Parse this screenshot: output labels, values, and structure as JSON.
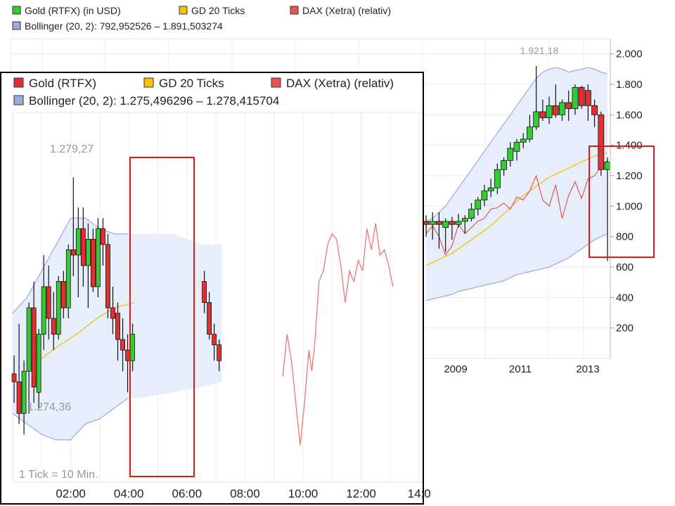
{
  "chart_data": [
    {
      "id": "background",
      "type": "candlestick",
      "legend": {
        "placement": "top-left",
        "entries": [
          {
            "name": "Gold (RTFX) (in USD)",
            "color": "#33cc33"
          },
          {
            "name": "GD 20 Ticks",
            "color": "#f5c400"
          },
          {
            "name": "DAX (Xetra) (relativ)",
            "color": "#e85454"
          }
        ],
        "bollinger": {
          "name": "Bollinger (20, 2): 792,952526 – 1.891,503274",
          "color": "#99aadd"
        }
      },
      "x_ticks": [
        "2009",
        "2011",
        "2013"
      ],
      "y_ticks": [
        "2.000",
        "1.800",
        "1.600",
        "1.400",
        "1.200",
        "1.000",
        "800",
        "600",
        "400",
        "200"
      ],
      "ylim": [
        0,
        2100
      ],
      "max_annotation": "1.921,18",
      "highlight": "red-box",
      "candles": [
        {
          "o": 900,
          "h": 940,
          "l": 800,
          "c": 880
        },
        {
          "o": 880,
          "h": 960,
          "l": 780,
          "c": 900
        },
        {
          "o": 900,
          "h": 960,
          "l": 720,
          "c": 880
        },
        {
          "o": 860,
          "h": 920,
          "l": 700,
          "c": 900
        },
        {
          "o": 900,
          "h": 930,
          "l": 780,
          "c": 880
        },
        {
          "o": 880,
          "h": 950,
          "l": 860,
          "c": 900
        },
        {
          "o": 900,
          "h": 940,
          "l": 820,
          "c": 920
        },
        {
          "o": 920,
          "h": 1020,
          "l": 900,
          "c": 980
        },
        {
          "o": 980,
          "h": 1060,
          "l": 940,
          "c": 1040
        },
        {
          "o": 1040,
          "h": 1140,
          "l": 1000,
          "c": 1100
        },
        {
          "o": 1100,
          "h": 1180,
          "l": 1060,
          "c": 1120
        },
        {
          "o": 1120,
          "h": 1280,
          "l": 1080,
          "c": 1240
        },
        {
          "o": 1240,
          "h": 1320,
          "l": 1200,
          "c": 1300
        },
        {
          "o": 1300,
          "h": 1420,
          "l": 1260,
          "c": 1380
        },
        {
          "o": 1360,
          "h": 1440,
          "l": 1300,
          "c": 1420
        },
        {
          "o": 1420,
          "h": 1480,
          "l": 1380,
          "c": 1440
        },
        {
          "o": 1440,
          "h": 1600,
          "l": 1420,
          "c": 1520
        },
        {
          "o": 1520,
          "h": 1920,
          "l": 1500,
          "c": 1620
        },
        {
          "o": 1620,
          "h": 1700,
          "l": 1560,
          "c": 1580
        },
        {
          "o": 1580,
          "h": 1720,
          "l": 1540,
          "c": 1660
        },
        {
          "o": 1660,
          "h": 1800,
          "l": 1580,
          "c": 1600
        },
        {
          "o": 1600,
          "h": 1700,
          "l": 1560,
          "c": 1680
        },
        {
          "o": 1680,
          "h": 1760,
          "l": 1560,
          "c": 1640
        },
        {
          "o": 1640,
          "h": 1800,
          "l": 1600,
          "c": 1780
        },
        {
          "o": 1780,
          "h": 1790,
          "l": 1640,
          "c": 1660
        },
        {
          "o": 1760,
          "h": 1800,
          "l": 1560,
          "c": 1660
        },
        {
          "o": 1660,
          "h": 1700,
          "l": 1520,
          "c": 1600
        },
        {
          "o": 1600,
          "h": 1620,
          "l": 1200,
          "c": 1240
        },
        {
          "o": 1240,
          "h": 1320,
          "l": 640,
          "c": 1290
        }
      ],
      "ma20": [
        610,
        630,
        650,
        670,
        690,
        720,
        750,
        780,
        810,
        840,
        870,
        910,
        950,
        990,
        1030,
        1070,
        1100,
        1130,
        1160,
        1190,
        1210,
        1230,
        1250,
        1270,
        1290,
        1310,
        1330,
        1340,
        1350
      ],
      "dax": [
        820,
        870,
        800,
        680,
        740,
        880,
        820,
        860,
        900,
        920,
        980,
        990,
        1020,
        980,
        1060,
        1040,
        1100,
        1200,
        1040,
        1000,
        1140,
        920,
        1070,
        1160,
        1050,
        1180,
        1200,
        1260,
        1300
      ],
      "bb_upper": [
        900,
        920,
        960,
        1000,
        1060,
        1120,
        1180,
        1240,
        1300,
        1360,
        1420,
        1480,
        1540,
        1600,
        1660,
        1720,
        1780,
        1840,
        1880,
        1900,
        1910,
        1900,
        1880,
        1890,
        1900,
        1910,
        1900,
        1880,
        1870
      ],
      "bb_lower": [
        380,
        390,
        400,
        410,
        420,
        440,
        450,
        460,
        470,
        480,
        490,
        500,
        510,
        530,
        550,
        560,
        570,
        580,
        590,
        600,
        620,
        640,
        660,
        690,
        720,
        750,
        780,
        800,
        820
      ]
    },
    {
      "id": "inset",
      "type": "candlestick",
      "legend": {
        "placement": "top-left",
        "entries": [
          {
            "name": "Gold (RTFX)",
            "color": "#e03030"
          },
          {
            "name": "GD 20 Ticks",
            "color": "#f5c400"
          },
          {
            "name": "DAX (Xetra) (relativ)",
            "color": "#e85454"
          }
        ],
        "bollinger": {
          "name": "Bollinger (20, 2): 1.275,496296 – 1.278,415704",
          "color": "#99aadd"
        }
      },
      "x_ticks": [
        "02:00",
        "04:00",
        "06:00",
        "08:00",
        "10:00",
        "12:00",
        "14:0"
      ],
      "xlim": [
        0,
        14
      ],
      "ylim": [
        1273.5,
        1280.5
      ],
      "max_annotation": "1.279,27",
      "min_annotation": "1.274,36",
      "footnote": "1 Tick = 10 Min.",
      "highlight": "red-box",
      "candles": [
        {
          "t": 0.05,
          "o": 1275.55,
          "h": 1275.9,
          "l": 1275.0,
          "c": 1275.4
        },
        {
          "t": 0.22,
          "o": 1275.4,
          "h": 1276.5,
          "l": 1274.6,
          "c": 1274.8
        },
        {
          "t": 0.39,
          "o": 1274.8,
          "h": 1275.8,
          "l": 1274.4,
          "c": 1275.6
        },
        {
          "t": 0.56,
          "o": 1275.6,
          "h": 1276.9,
          "l": 1274.8,
          "c": 1276.8
        },
        {
          "t": 0.73,
          "o": 1276.8,
          "h": 1277.3,
          "l": 1275.0,
          "c": 1275.3
        },
        {
          "t": 0.9,
          "o": 1275.2,
          "h": 1276.4,
          "l": 1274.9,
          "c": 1276.3
        },
        {
          "t": 1.07,
          "o": 1276.3,
          "h": 1277.8,
          "l": 1276.0,
          "c": 1277.2
        },
        {
          "t": 1.24,
          "o": 1277.2,
          "h": 1277.6,
          "l": 1276.2,
          "c": 1276.6
        },
        {
          "t": 1.41,
          "o": 1276.6,
          "h": 1277.1,
          "l": 1276.0,
          "c": 1276.3
        },
        {
          "t": 1.58,
          "o": 1276.3,
          "h": 1277.4,
          "l": 1276.2,
          "c": 1277.3
        },
        {
          "t": 1.75,
          "o": 1277.3,
          "h": 1277.5,
          "l": 1276.6,
          "c": 1276.8
        },
        {
          "t": 1.92,
          "o": 1276.8,
          "h": 1278.0,
          "l": 1276.6,
          "c": 1277.9
        },
        {
          "t": 2.09,
          "o": 1277.9,
          "h": 1279.27,
          "l": 1277.4,
          "c": 1277.8
        },
        {
          "t": 2.26,
          "o": 1277.8,
          "h": 1278.7,
          "l": 1277.0,
          "c": 1278.3
        },
        {
          "t": 2.43,
          "o": 1278.3,
          "h": 1278.7,
          "l": 1277.2,
          "c": 1277.6
        },
        {
          "t": 2.6,
          "o": 1277.6,
          "h": 1278.4,
          "l": 1276.8,
          "c": 1278.1
        },
        {
          "t": 2.77,
          "o": 1278.1,
          "h": 1278.3,
          "l": 1277.1,
          "c": 1277.2
        },
        {
          "t": 2.94,
          "o": 1277.2,
          "h": 1278.5,
          "l": 1277.0,
          "c": 1278.3
        },
        {
          "t": 3.11,
          "o": 1278.3,
          "h": 1278.5,
          "l": 1277.6,
          "c": 1278.0
        },
        {
          "t": 3.28,
          "o": 1278.0,
          "h": 1278.2,
          "l": 1276.6,
          "c": 1276.8
        },
        {
          "t": 3.45,
          "o": 1276.8,
          "h": 1277.2,
          "l": 1276.3,
          "c": 1276.6
        },
        {
          "t": 3.62,
          "o": 1276.7,
          "h": 1276.9,
          "l": 1275.8,
          "c": 1276.2
        },
        {
          "t": 3.79,
          "o": 1276.2,
          "h": 1276.6,
          "l": 1275.6,
          "c": 1276.0
        },
        {
          "t": 3.96,
          "o": 1276.0,
          "h": 1276.3,
          "l": 1275.2,
          "c": 1275.8
        },
        {
          "t": 4.13,
          "o": 1275.8,
          "h": 1276.5,
          "l": 1275.6,
          "c": 1276.3
        },
        {
          "t": 6.6,
          "o": 1277.3,
          "h": 1277.5,
          "l": 1276.7,
          "c": 1276.9
        },
        {
          "t": 6.77,
          "o": 1276.9,
          "h": 1277.1,
          "l": 1276.2,
          "c": 1276.3
        },
        {
          "t": 6.94,
          "o": 1276.3,
          "h": 1276.5,
          "l": 1275.8,
          "c": 1276.1
        },
        {
          "t": 7.11,
          "o": 1276.1,
          "h": 1276.2,
          "l": 1275.6,
          "c": 1275.8
        }
      ],
      "ma20": [
        {
          "t": 0.9,
          "v": 1275.8
        },
        {
          "t": 1.5,
          "v": 1276.05
        },
        {
          "t": 2.2,
          "v": 1276.3
        },
        {
          "t": 2.9,
          "v": 1276.6
        },
        {
          "t": 3.5,
          "v": 1276.8
        },
        {
          "t": 4.2,
          "v": 1276.9
        }
      ],
      "dax": [
        {
          "t": 9.3,
          "v": 1275.5
        },
        {
          "t": 9.45,
          "v": 1276.3
        },
        {
          "t": 9.6,
          "v": 1275.8
        },
        {
          "t": 9.75,
          "v": 1275.0
        },
        {
          "t": 9.9,
          "v": 1274.2
        },
        {
          "t": 10.05,
          "v": 1275.0
        },
        {
          "t": 10.2,
          "v": 1276.0
        },
        {
          "t": 10.3,
          "v": 1275.6
        },
        {
          "t": 10.4,
          "v": 1276.1
        },
        {
          "t": 10.55,
          "v": 1277.3
        },
        {
          "t": 10.7,
          "v": 1277.5
        },
        {
          "t": 10.85,
          "v": 1278.0
        },
        {
          "t": 11.0,
          "v": 1278.2
        },
        {
          "t": 11.15,
          "v": 1278.1
        },
        {
          "t": 11.3,
          "v": 1277.6
        },
        {
          "t": 11.45,
          "v": 1276.9
        },
        {
          "t": 11.6,
          "v": 1277.5
        },
        {
          "t": 11.75,
          "v": 1277.3
        },
        {
          "t": 11.9,
          "v": 1277.7
        },
        {
          "t": 12.05,
          "v": 1277.5
        },
        {
          "t": 12.2,
          "v": 1278.3
        },
        {
          "t": 12.35,
          "v": 1277.9
        },
        {
          "t": 12.5,
          "v": 1278.4
        },
        {
          "t": 12.65,
          "v": 1277.8
        },
        {
          "t": 12.8,
          "v": 1277.9
        },
        {
          "t": 12.95,
          "v": 1277.6
        },
        {
          "t": 13.1,
          "v": 1277.2
        }
      ],
      "bb_upper": [
        {
          "t": 0.0,
          "v": 1276.7
        },
        {
          "t": 0.5,
          "v": 1277.0
        },
        {
          "t": 1.0,
          "v": 1277.5
        },
        {
          "t": 1.5,
          "v": 1278.0
        },
        {
          "t": 2.0,
          "v": 1278.5
        },
        {
          "t": 2.5,
          "v": 1278.5
        },
        {
          "t": 3.0,
          "v": 1278.3
        },
        {
          "t": 3.5,
          "v": 1278.2
        },
        {
          "t": 4.0,
          "v": 1278.2
        },
        {
          "t": 4.5,
          "v": 1278.2
        },
        {
          "t": 5.5,
          "v": 1278.2
        },
        {
          "t": 6.5,
          "v": 1278.0
        },
        {
          "t": 7.2,
          "v": 1278.0
        }
      ],
      "bb_lower": [
        {
          "t": 0.0,
          "v": 1274.8
        },
        {
          "t": 0.5,
          "v": 1274.6
        },
        {
          "t": 1.0,
          "v": 1274.4
        },
        {
          "t": 1.5,
          "v": 1274.3
        },
        {
          "t": 2.0,
          "v": 1274.3
        },
        {
          "t": 2.5,
          "v": 1274.6
        },
        {
          "t": 3.0,
          "v": 1274.7
        },
        {
          "t": 3.5,
          "v": 1274.9
        },
        {
          "t": 4.0,
          "v": 1275.1
        },
        {
          "t": 4.5,
          "v": 1275.1
        },
        {
          "t": 5.5,
          "v": 1275.2
        },
        {
          "t": 6.5,
          "v": 1275.3
        },
        {
          "t": 7.2,
          "v": 1275.4
        }
      ]
    }
  ]
}
